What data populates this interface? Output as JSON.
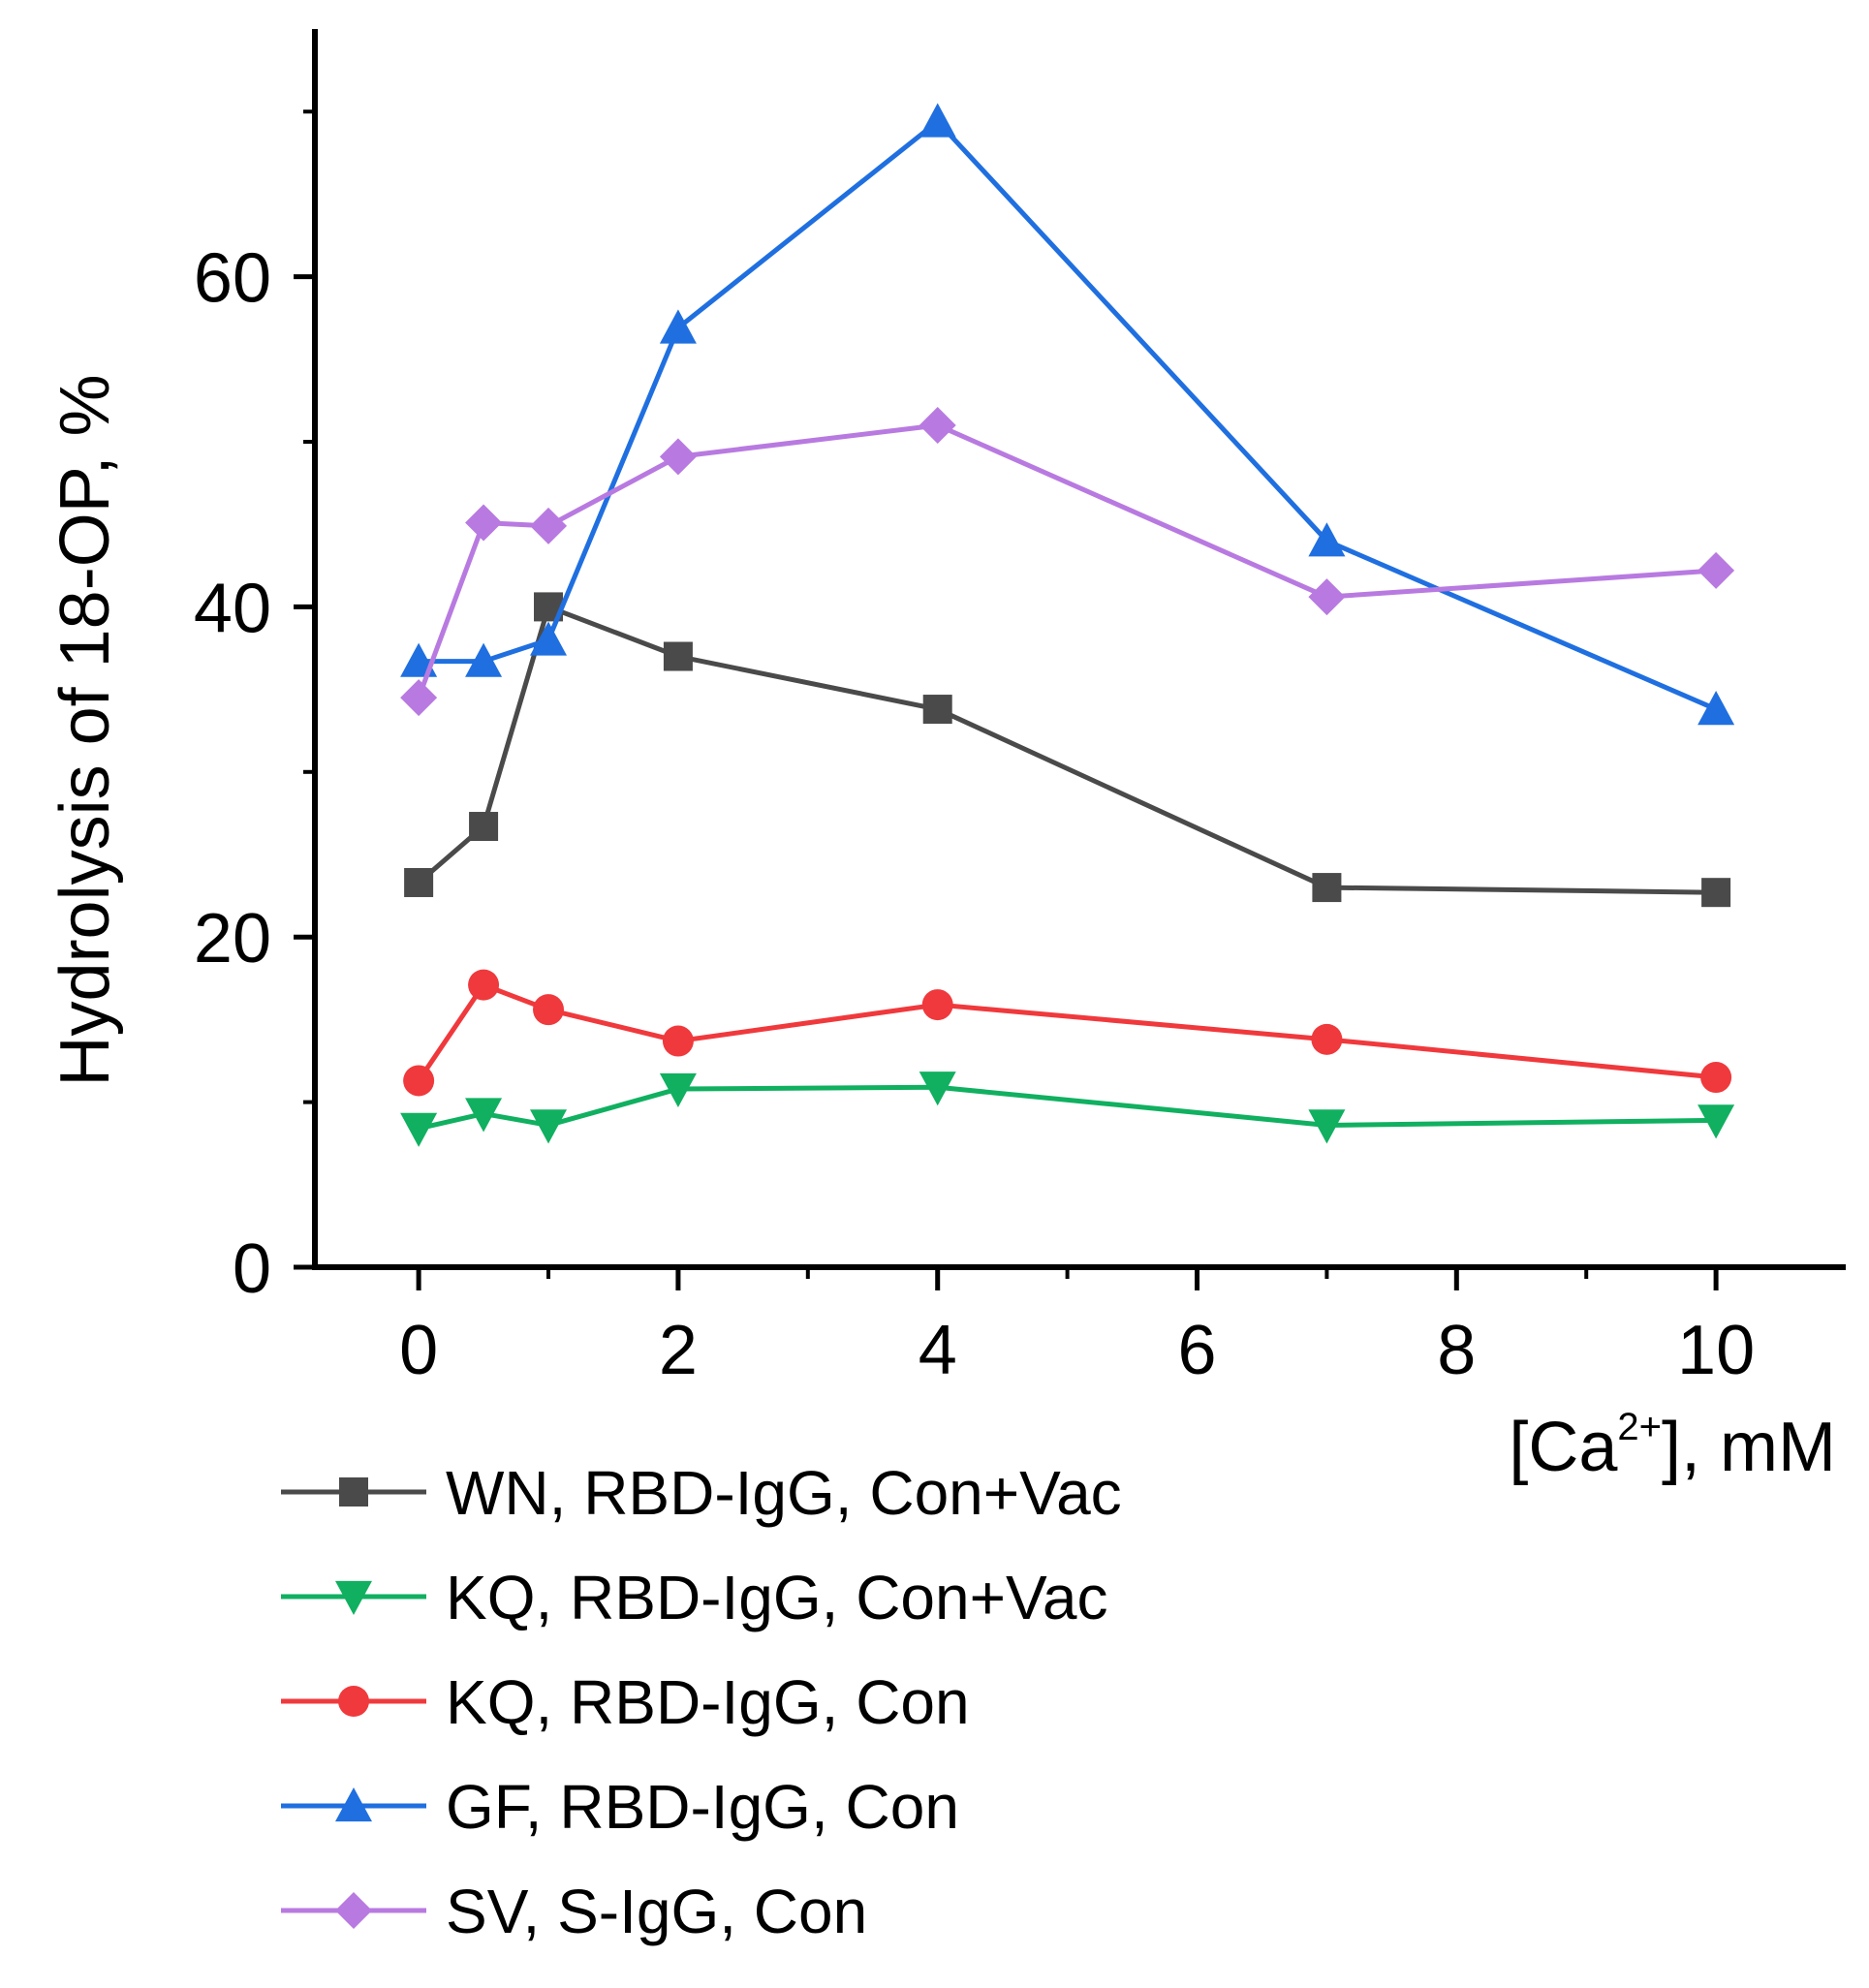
{
  "chart_data": {
    "type": "line",
    "title": "",
    "ylabel": "Hydrolysis of 18-OP, %",
    "xlabel": {
      "prefix": "[Ca",
      "sup": "2+",
      "suffix": "], mM"
    },
    "xlim": [
      -0.8,
      11.0
    ],
    "ylim": [
      0,
      75
    ],
    "x_ticks": [
      0,
      2,
      4,
      6,
      8,
      10
    ],
    "x_tick_labels": [
      "0",
      "2",
      "4",
      "6",
      "8",
      "10"
    ],
    "y_ticks": [
      0,
      20,
      40,
      60
    ],
    "y_tick_labels": [
      "0",
      "20",
      "40",
      "60"
    ],
    "x_minor_ticks": [
      1,
      3,
      5,
      7,
      9
    ],
    "y_minor_ticks": [
      10,
      30,
      50,
      70
    ],
    "grid": false,
    "legend_position": "bottom",
    "x": [
      0,
      0.5,
      1,
      2,
      4,
      7,
      10
    ],
    "series": [
      {
        "name": "WN, RBD-IgG, Con+Vac",
        "color": "#4a4a4a",
        "marker": "square",
        "values": [
          23.3,
          26.7,
          40.0,
          37.0,
          33.8,
          23.0,
          22.7
        ]
      },
      {
        "name": "KQ, RBD-IgG, Con+Vac",
        "color": "#10b060",
        "marker": "triangle-down",
        "values": [
          8.4,
          9.3,
          8.6,
          10.8,
          10.9,
          8.6,
          8.9
        ]
      },
      {
        "name": "KQ, RBD-IgG, Con",
        "color": "#f0393c",
        "marker": "circle",
        "values": [
          11.3,
          17.1,
          15.6,
          13.7,
          15.9,
          13.8,
          11.5
        ]
      },
      {
        "name": "GF, RBD-IgG, Con",
        "color": "#1f6fe0",
        "marker": "triangle-up",
        "values": [
          36.7,
          36.7,
          38.0,
          56.9,
          69.4,
          44.0,
          33.8
        ]
      },
      {
        "name": "SV, S-IgG, Con",
        "color": "#b87ae0",
        "marker": "diamond",
        "values": [
          34.5,
          45.1,
          44.9,
          49.1,
          51.0,
          40.6,
          42.2
        ]
      }
    ]
  }
}
